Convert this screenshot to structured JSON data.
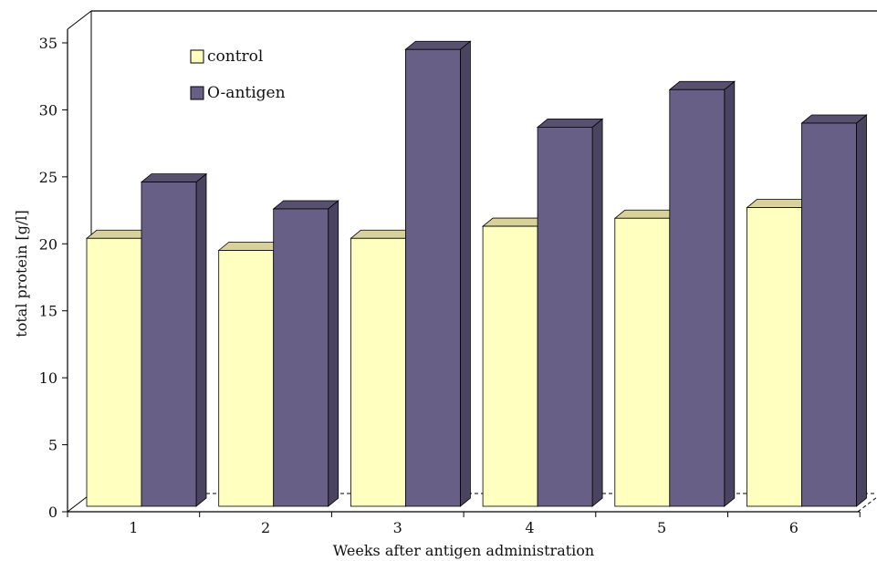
{
  "chart_data": {
    "type": "bar",
    "xlabel": "Weeks after antigen administration",
    "ylabel": "total protein  [g/l]",
    "ylim": [
      0,
      35
    ],
    "yticks": [
      0,
      5,
      10,
      15,
      20,
      25,
      30,
      35
    ],
    "categories": [
      "1",
      "2",
      "3",
      "4",
      "5",
      "6"
    ],
    "series": [
      {
        "name": "control",
        "values": [
          20.0,
          19.1,
          20.0,
          20.9,
          21.5,
          22.3
        ]
      },
      {
        "name": "O-antigen",
        "values": [
          24.2,
          22.2,
          34.1,
          28.3,
          31.1,
          28.6
        ]
      }
    ],
    "legend_position": "top-left",
    "grid": false,
    "style": "3d",
    "colors": {
      "control_front": "#FFFFC0",
      "control_top": "#D8D29A",
      "control_side": "#B9B486",
      "oantigen_front": "#675F85",
      "oantigen_top": "#57506F",
      "oantigen_side": "#4A4460"
    }
  }
}
